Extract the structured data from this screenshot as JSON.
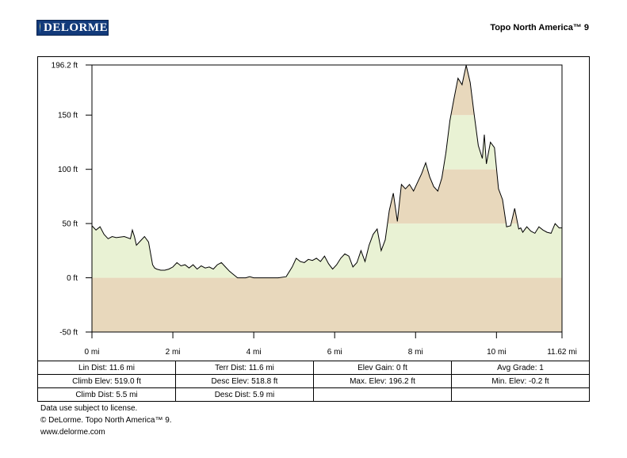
{
  "header": {
    "logo_text": "DELORME",
    "product": "Topo North America™ 9"
  },
  "chart_data": {
    "type": "area",
    "title": "",
    "xlabel": "",
    "ylabel": "",
    "x_unit": "mi",
    "y_unit": "ft",
    "xlim": [
      0,
      11.62
    ],
    "ylim": [
      -50,
      196.2
    ],
    "x_ticks": [
      "0 mi",
      "2 mi",
      "4 mi",
      "6 mi",
      "8 mi",
      "10 mi",
      "11.62 mi"
    ],
    "y_ticks": [
      "196.2 ft",
      "150 ft",
      "100 ft",
      "50 ft",
      "0 ft",
      "-50 ft"
    ],
    "band_colors": [
      "#e8d8bc",
      "#e9f2d4"
    ],
    "grid": false,
    "x": [
      0,
      0.1,
      0.2,
      0.3,
      0.4,
      0.5,
      0.6,
      0.8,
      0.95,
      1.0,
      1.05,
      1.1,
      1.2,
      1.3,
      1.4,
      1.5,
      1.55,
      1.6,
      1.7,
      1.8,
      1.9,
      2.0,
      2.1,
      2.2,
      2.3,
      2.4,
      2.5,
      2.6,
      2.7,
      2.8,
      2.9,
      3.0,
      3.1,
      3.2,
      3.3,
      3.4,
      3.5,
      3.6,
      3.7,
      3.8,
      3.9,
      4.0,
      4.2,
      4.4,
      4.6,
      4.8,
      4.95,
      5.05,
      5.15,
      5.25,
      5.35,
      5.45,
      5.55,
      5.65,
      5.75,
      5.85,
      5.95,
      6.05,
      6.15,
      6.25,
      6.35,
      6.45,
      6.55,
      6.65,
      6.75,
      6.85,
      6.95,
      7.05,
      7.15,
      7.25,
      7.35,
      7.45,
      7.55,
      7.65,
      7.75,
      7.85,
      7.95,
      8.05,
      8.15,
      8.25,
      8.35,
      8.45,
      8.55,
      8.65,
      8.75,
      8.85,
      8.95,
      9.05,
      9.15,
      9.25,
      9.35,
      9.45,
      9.55,
      9.65,
      9.7,
      9.75,
      9.85,
      9.95,
      10.05,
      10.15,
      10.25,
      10.35,
      10.45,
      10.55,
      10.6,
      10.65,
      10.75,
      10.85,
      10.95,
      11.05,
      11.15,
      11.25,
      11.35,
      11.45,
      11.55,
      11.62
    ],
    "y": [
      48,
      44,
      47,
      40,
      36,
      38,
      37,
      38,
      36,
      44,
      38,
      30,
      34,
      38,
      33,
      12,
      9,
      8,
      7,
      7,
      8,
      10,
      14,
      11,
      12,
      9,
      12,
      8,
      11,
      9,
      10,
      8,
      12,
      14,
      10,
      6,
      3,
      0,
      0,
      0,
      1,
      0,
      0,
      0,
      0,
      1,
      10,
      18,
      15,
      14,
      17,
      16,
      18,
      15,
      20,
      13,
      8,
      12,
      18,
      22,
      20,
      10,
      14,
      25,
      15,
      30,
      40,
      45,
      25,
      35,
      62,
      78,
      52,
      86,
      82,
      86,
      80,
      88,
      96,
      106,
      93,
      84,
      80,
      92,
      115,
      145,
      165,
      184,
      178,
      196,
      180,
      150,
      122,
      110,
      132,
      105,
      125,
      120,
      82,
      72,
      47,
      48,
      64,
      45,
      46,
      42,
      47,
      43,
      41,
      47,
      44,
      42,
      41,
      50,
      46,
      46
    ]
  },
  "stats": [
    [
      "Lin Dist:  11.6 mi",
      "Terr Dist:  11.6 mi",
      "Elev Gain:  0 ft",
      "Avg Grade:  1"
    ],
    [
      "Climb Elev:  519.0 ft",
      "Desc Elev:  518.8 ft",
      "Max. Elev:  196.2 ft",
      "Min. Elev:  -0.2 ft"
    ],
    [
      "Climb Dist:  5.5 mi",
      "Desc Dist:  5.9 mi",
      "",
      ""
    ]
  ],
  "footer": {
    "line1": "Data use subject to license.",
    "line2": "© DeLorme. Topo North America™ 9.",
    "line3": "www.delorme.com"
  }
}
